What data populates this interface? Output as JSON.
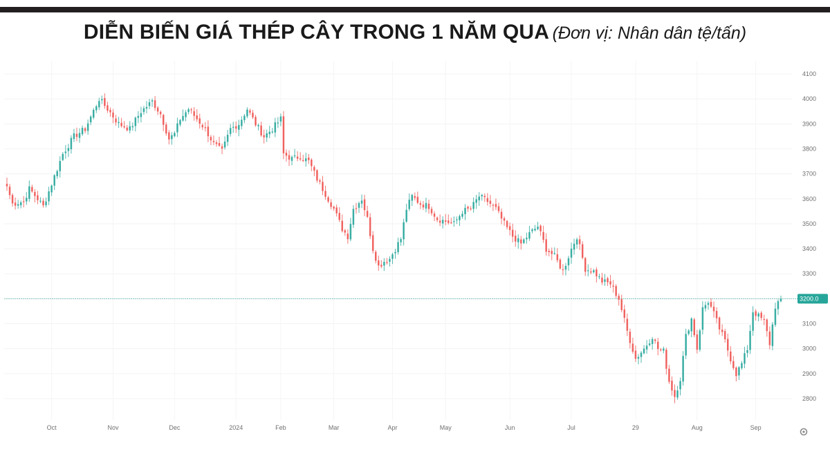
{
  "header": {
    "title": "DIỄN BIẾN GIÁ THÉP CÂY TRONG 1 NĂM QUA",
    "unit": "(Đơn vị: Nhân dân tệ/tấn)"
  },
  "chart_data": {
    "type": "candlestick",
    "title": "DIỄN BIẾN GIÁ THÉP CÂY TRONG 1 NĂM QUA",
    "unit": "Nhân dân tệ/tấn",
    "ylim": [
      2700,
      4100
    ],
    "y_ticks": [
      2800,
      2900,
      3000,
      3100,
      3200,
      3300,
      3400,
      3500,
      3600,
      3700,
      3800,
      3900,
      4000,
      4100
    ],
    "x_ticks": [
      {
        "label": "Oct",
        "index": 16
      },
      {
        "label": "Nov",
        "index": 38
      },
      {
        "label": "Dec",
        "index": 60
      },
      {
        "label": "2024",
        "index": 82
      },
      {
        "label": "Feb",
        "index": 98
      },
      {
        "label": "Mar",
        "index": 117
      },
      {
        "label": "Apr",
        "index": 138
      },
      {
        "label": "May",
        "index": 157
      },
      {
        "label": "Jun",
        "index": 180
      },
      {
        "label": "Jul",
        "index": 202
      },
      {
        "label": "29",
        "index": 225
      },
      {
        "label": "Aug",
        "index": 247
      },
      {
        "label": "Sep",
        "index": 268
      }
    ],
    "current_price": {
      "value": 3200,
      "label": "3200.0"
    },
    "grid": true,
    "up_color": "#26a69a",
    "down_color": "#ef5350",
    "close_keypoints": [
      [
        0,
        3650
      ],
      [
        2,
        3580
      ],
      [
        6,
        3590
      ],
      [
        8,
        3640
      ],
      [
        11,
        3600
      ],
      [
        13,
        3570
      ],
      [
        16,
        3660
      ],
      [
        20,
        3780
      ],
      [
        24,
        3850
      ],
      [
        28,
        3880
      ],
      [
        33,
        4000
      ],
      [
        36,
        3960
      ],
      [
        40,
        3900
      ],
      [
        44,
        3880
      ],
      [
        48,
        3950
      ],
      [
        52,
        3990
      ],
      [
        55,
        3940
      ],
      [
        58,
        3840
      ],
      [
        60,
        3860
      ],
      [
        62,
        3920
      ],
      [
        65,
        3960
      ],
      [
        68,
        3920
      ],
      [
        71,
        3880
      ],
      [
        74,
        3820
      ],
      [
        77,
        3790
      ],
      [
        80,
        3880
      ],
      [
        83,
        3900
      ],
      [
        86,
        3960
      ],
      [
        89,
        3900
      ],
      [
        92,
        3850
      ],
      [
        95,
        3880
      ],
      [
        98,
        3920
      ],
      [
        99,
        3780
      ],
      [
        102,
        3760
      ],
      [
        105,
        3770
      ],
      [
        108,
        3750
      ],
      [
        111,
        3680
      ],
      [
        114,
        3620
      ],
      [
        117,
        3560
      ],
      [
        120,
        3480
      ],
      [
        122,
        3450
      ],
      [
        124,
        3560
      ],
      [
        127,
        3600
      ],
      [
        129,
        3520
      ],
      [
        131,
        3400
      ],
      [
        133,
        3330
      ],
      [
        135,
        3350
      ],
      [
        137,
        3360
      ],
      [
        141,
        3440
      ],
      [
        143,
        3560
      ],
      [
        145,
        3610
      ],
      [
        148,
        3580
      ],
      [
        151,
        3570
      ],
      [
        154,
        3520
      ],
      [
        157,
        3510
      ],
      [
        160,
        3500
      ],
      [
        163,
        3550
      ],
      [
        166,
        3560
      ],
      [
        169,
        3610
      ],
      [
        172,
        3590
      ],
      [
        175,
        3560
      ],
      [
        178,
        3500
      ],
      [
        181,
        3450
      ],
      [
        184,
        3420
      ],
      [
        187,
        3460
      ],
      [
        190,
        3490
      ],
      [
        193,
        3400
      ],
      [
        196,
        3370
      ],
      [
        199,
        3310
      ],
      [
        202,
        3400
      ],
      [
        204,
        3450
      ],
      [
        207,
        3320
      ],
      [
        210,
        3310
      ],
      [
        213,
        3270
      ],
      [
        216,
        3260
      ],
      [
        219,
        3200
      ],
      [
        222,
        3070
      ],
      [
        225,
        2960
      ],
      [
        228,
        3000
      ],
      [
        231,
        3050
      ],
      [
        233,
        3000
      ],
      [
        235,
        2990
      ],
      [
        237,
        2870
      ],
      [
        239,
        2810
      ],
      [
        241,
        2880
      ],
      [
        243,
        3050
      ],
      [
        245,
        3120
      ],
      [
        247,
        3000
      ],
      [
        249,
        3160
      ],
      [
        251,
        3190
      ],
      [
        253,
        3140
      ],
      [
        255,
        3080
      ],
      [
        257,
        3030
      ],
      [
        259,
        2960
      ],
      [
        261,
        2900
      ],
      [
        263,
        2940
      ],
      [
        265,
        3000
      ],
      [
        267,
        3150
      ],
      [
        269,
        3130
      ],
      [
        271,
        3110
      ],
      [
        273,
        3020
      ],
      [
        275,
        3170
      ],
      [
        277,
        3200
      ]
    ]
  }
}
